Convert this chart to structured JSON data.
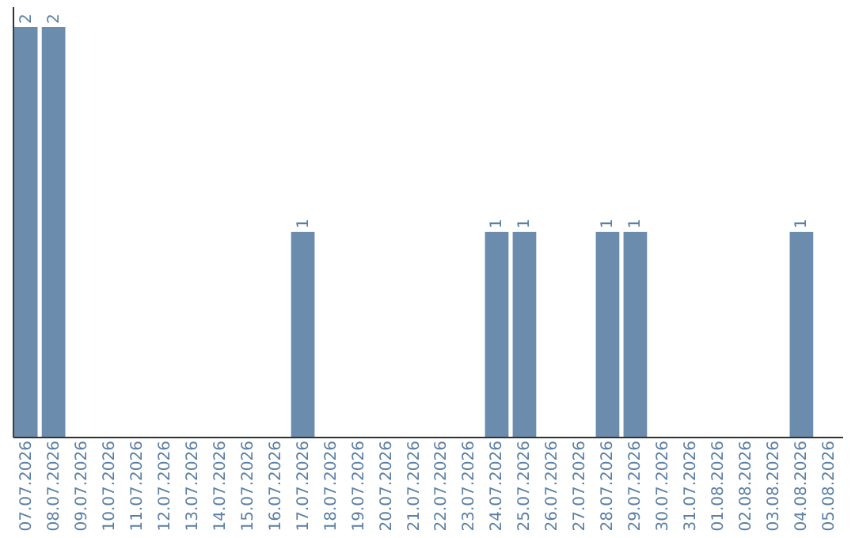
{
  "chart_data": {
    "type": "bar",
    "categories": [
      "07.07.2026",
      "08.07.2026",
      "09.07.2026",
      "10.07.2026",
      "11.07.2026",
      "12.07.2026",
      "13.07.2026",
      "14.07.2026",
      "15.07.2026",
      "16.07.2026",
      "17.07.2026",
      "18.07.2026",
      "19.07.2026",
      "20.07.2026",
      "21.07.2026",
      "22.07.2026",
      "23.07.2026",
      "24.07.2026",
      "25.07.2026",
      "26.07.2026",
      "27.07.2026",
      "28.07.2026",
      "29.07.2026",
      "30.07.2026",
      "31.07.2026",
      "01.08.2026",
      "02.08.2026",
      "03.08.2026",
      "04.08.2026",
      "05.08.2026"
    ],
    "values": [
      2,
      2,
      0,
      0,
      0,
      0,
      0,
      0,
      0,
      0,
      1,
      0,
      0,
      0,
      0,
      0,
      0,
      1,
      1,
      0,
      0,
      1,
      1,
      0,
      0,
      0,
      0,
      0,
      1,
      0
    ],
    "value_labels": [
      "2",
      "2",
      null,
      null,
      null,
      null,
      null,
      null,
      null,
      null,
      "1",
      null,
      null,
      null,
      null,
      null,
      null,
      "1",
      "1",
      null,
      null,
      "1",
      "1",
      null,
      null,
      null,
      null,
      null,
      "1",
      null
    ],
    "color": "#6b8cac",
    "ylim": [
      0,
      2.1
    ],
    "tick_labels": "x",
    "grid": false
  }
}
